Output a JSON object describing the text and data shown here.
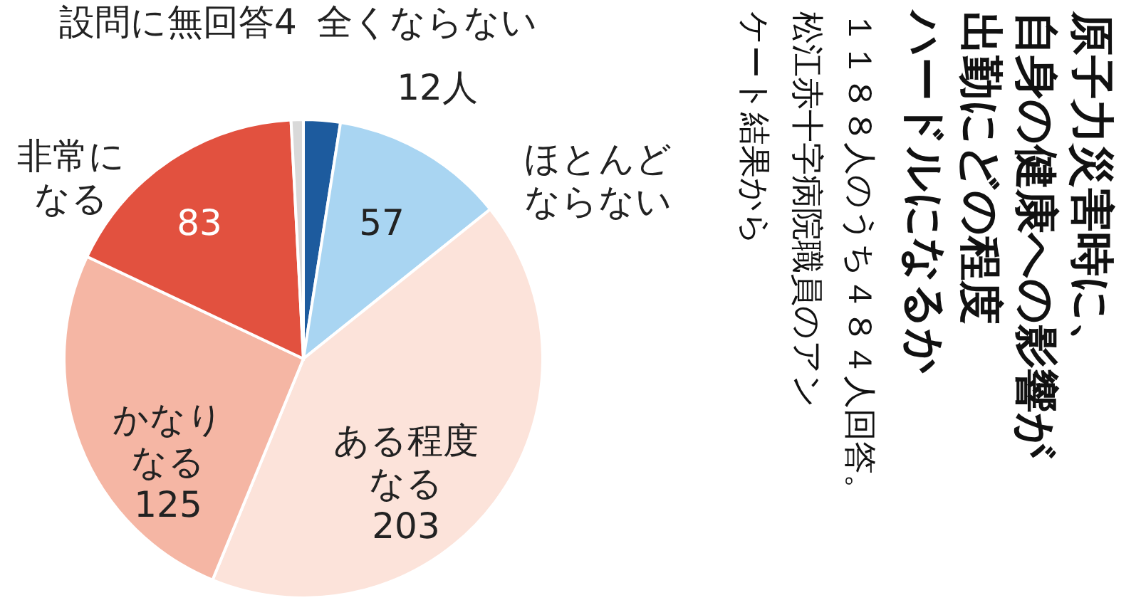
{
  "chart_data": {
    "type": "pie",
    "title": "原子力災害時に、自身の健康への影響が出勤にどの程度ハードルになるか",
    "subtitle": "１１８８人のうち４８４人回答。松江赤十字病院職員のアンケート結果から",
    "categories": [
      "全くならない",
      "ほとんどならない",
      "ある程度なる",
      "かなりなる",
      "非常になる",
      "設問に無回答"
    ],
    "values": [
      12,
      57,
      203,
      125,
      83,
      4
    ],
    "value_labels": [
      "12人",
      "57",
      "203",
      "125",
      "83",
      "4"
    ],
    "colors": [
      "#1d5b9e",
      "#a9d5f2",
      "#fce3da",
      "#f5b6a4",
      "#e2513f",
      "#d9d9d9"
    ]
  }
}
